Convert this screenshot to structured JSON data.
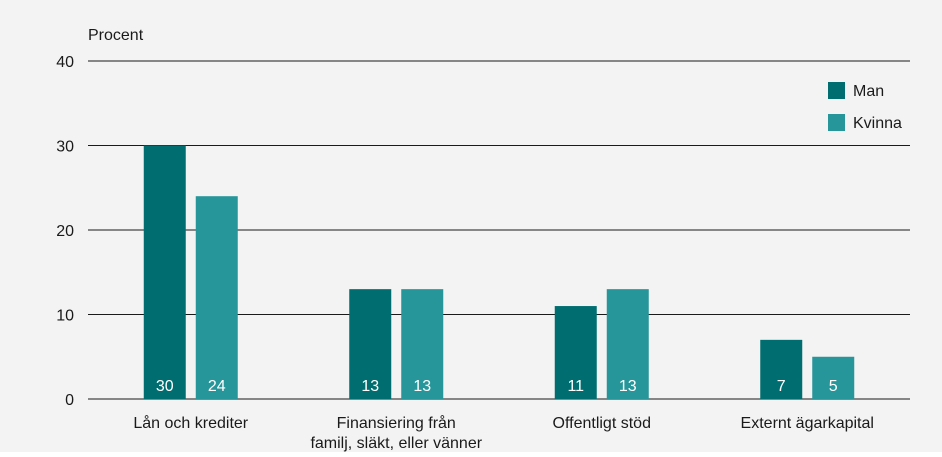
{
  "chart_data": {
    "type": "bar",
    "ylabel": "Procent",
    "ylim": [
      0,
      40
    ],
    "yticks": [
      0,
      10,
      20,
      30,
      40
    ],
    "grid": true,
    "legend_position": "top-right",
    "categories": [
      [
        "Lån och krediter"
      ],
      [
        "Finansiering från",
        "familj, släkt, eller vänner"
      ],
      [
        "Offentligt stöd"
      ],
      [
        "Externt ägarkapital"
      ]
    ],
    "series": [
      {
        "name": "Man",
        "color": "#006e70",
        "values": [
          30,
          13,
          11,
          7
        ],
        "labels": [
          "30",
          "13",
          "11",
          "7"
        ]
      },
      {
        "name": "Kvinna",
        "color": "#26969a",
        "values": [
          24,
          13,
          13,
          5
        ],
        "labels": [
          "24",
          "13",
          "13",
          "5"
        ]
      }
    ]
  }
}
